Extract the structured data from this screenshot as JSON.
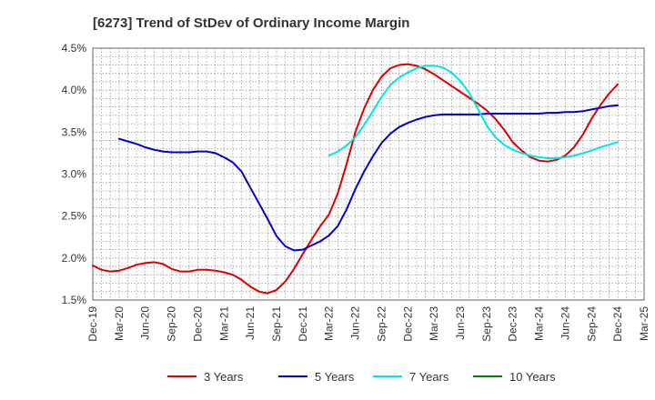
{
  "chart_data": {
    "type": "line",
    "title": "[6273]  Trend of StDev of Ordinary Income Margin",
    "xlabel": "",
    "ylabel": "",
    "ylim": [
      1.5,
      4.5
    ],
    "y_ticks": [
      1.5,
      2.0,
      2.5,
      3.0,
      3.5,
      4.0,
      4.5
    ],
    "y_tick_labels": [
      "1.5%",
      "2.0%",
      "2.5%",
      "3.0%",
      "3.5%",
      "4.0%",
      "4.5%"
    ],
    "x_ticks": [
      "Dec-19",
      "Mar-20",
      "Jun-20",
      "Sep-20",
      "Dec-20",
      "Mar-21",
      "Jun-21",
      "Sep-21",
      "Dec-21",
      "Mar-22",
      "Jun-22",
      "Sep-22",
      "Dec-22",
      "Mar-23",
      "Jun-23",
      "Sep-23",
      "Dec-23",
      "Mar-24",
      "Jun-24",
      "Sep-24",
      "Dec-24",
      "Mar-25"
    ],
    "grid": true,
    "legend_position": "bottom",
    "series": [
      {
        "name": "3 Years",
        "color": "#dd0000",
        "points": [
          [
            "Dec-19",
            1.91
          ],
          [
            "Jan-20",
            1.86
          ],
          [
            "Feb-20",
            1.84
          ],
          [
            "Mar-20",
            1.85
          ],
          [
            "Apr-20",
            1.88
          ],
          [
            "May-20",
            1.92
          ],
          [
            "Jun-20",
            1.94
          ],
          [
            "Jul-20",
            1.95
          ],
          [
            "Aug-20",
            1.93
          ],
          [
            "Sep-20",
            1.87
          ],
          [
            "Oct-20",
            1.84
          ],
          [
            "Nov-20",
            1.84
          ],
          [
            "Dec-20",
            1.86
          ],
          [
            "Jan-21",
            1.86
          ],
          [
            "Feb-21",
            1.85
          ],
          [
            "Mar-21",
            1.83
          ],
          [
            "Apr-21",
            1.8
          ],
          [
            "May-21",
            1.74
          ],
          [
            "Jun-21",
            1.66
          ],
          [
            "Jul-21",
            1.6
          ],
          [
            "Aug-21",
            1.58
          ],
          [
            "Sep-21",
            1.62
          ],
          [
            "Oct-21",
            1.72
          ],
          [
            "Nov-21",
            1.87
          ],
          [
            "Dec-21",
            2.05
          ],
          [
            "Jan-22",
            2.22
          ],
          [
            "Feb-22",
            2.38
          ],
          [
            "Mar-22",
            2.52
          ],
          [
            "Apr-22",
            2.77
          ],
          [
            "May-22",
            3.12
          ],
          [
            "Jun-22",
            3.5
          ],
          [
            "Jul-22",
            3.78
          ],
          [
            "Aug-22",
            4.0
          ],
          [
            "Sep-22",
            4.16
          ],
          [
            "Oct-22",
            4.26
          ],
          [
            "Nov-22",
            4.3
          ],
          [
            "Dec-22",
            4.31
          ],
          [
            "Jan-23",
            4.29
          ],
          [
            "Feb-23",
            4.25
          ],
          [
            "Mar-23",
            4.19
          ],
          [
            "Apr-23",
            4.12
          ],
          [
            "May-23",
            4.05
          ],
          [
            "Jun-23",
            3.98
          ],
          [
            "Jul-23",
            3.91
          ],
          [
            "Aug-23",
            3.84
          ],
          [
            "Sep-23",
            3.76
          ],
          [
            "Oct-23",
            3.66
          ],
          [
            "Nov-23",
            3.53
          ],
          [
            "Dec-23",
            3.38
          ],
          [
            "Jan-24",
            3.28
          ],
          [
            "Feb-24",
            3.2
          ],
          [
            "Mar-24",
            3.16
          ],
          [
            "Apr-24",
            3.15
          ],
          [
            "May-24",
            3.17
          ],
          [
            "Jun-24",
            3.22
          ],
          [
            "Jul-24",
            3.32
          ],
          [
            "Aug-24",
            3.47
          ],
          [
            "Sep-24",
            3.66
          ],
          [
            "Oct-24",
            3.82
          ],
          [
            "Nov-24",
            3.96
          ],
          [
            "Dec-24",
            4.07
          ]
        ]
      },
      {
        "name": "5 Years",
        "color": "#0000cc",
        "points": [
          [
            "Mar-20",
            3.42
          ],
          [
            "Apr-20",
            3.39
          ],
          [
            "May-20",
            3.36
          ],
          [
            "Jun-20",
            3.32
          ],
          [
            "Jul-20",
            3.29
          ],
          [
            "Aug-20",
            3.27
          ],
          [
            "Sep-20",
            3.26
          ],
          [
            "Oct-20",
            3.26
          ],
          [
            "Nov-20",
            3.26
          ],
          [
            "Dec-20",
            3.27
          ],
          [
            "Jan-21",
            3.27
          ],
          [
            "Feb-21",
            3.25
          ],
          [
            "Mar-21",
            3.2
          ],
          [
            "Apr-21",
            3.14
          ],
          [
            "May-21",
            3.03
          ],
          [
            "Jun-21",
            2.84
          ],
          [
            "Jul-21",
            2.65
          ],
          [
            "Aug-21",
            2.46
          ],
          [
            "Sep-21",
            2.26
          ],
          [
            "Oct-21",
            2.14
          ],
          [
            "Nov-21",
            2.09
          ],
          [
            "Dec-21",
            2.1
          ],
          [
            "Jan-22",
            2.15
          ],
          [
            "Feb-22",
            2.2
          ],
          [
            "Mar-22",
            2.27
          ],
          [
            "Apr-22",
            2.38
          ],
          [
            "May-22",
            2.58
          ],
          [
            "Jun-22",
            2.82
          ],
          [
            "Jul-22",
            3.03
          ],
          [
            "Aug-22",
            3.21
          ],
          [
            "Sep-22",
            3.37
          ],
          [
            "Oct-22",
            3.48
          ],
          [
            "Nov-22",
            3.56
          ],
          [
            "Dec-22",
            3.61
          ],
          [
            "Jan-23",
            3.65
          ],
          [
            "Feb-23",
            3.68
          ],
          [
            "Mar-23",
            3.7
          ],
          [
            "Apr-23",
            3.71
          ],
          [
            "May-23",
            3.71
          ],
          [
            "Jun-23",
            3.71
          ],
          [
            "Jul-23",
            3.71
          ],
          [
            "Aug-23",
            3.71
          ],
          [
            "Sep-23",
            3.72
          ],
          [
            "Oct-23",
            3.72
          ],
          [
            "Nov-23",
            3.72
          ],
          [
            "Dec-23",
            3.72
          ],
          [
            "Jan-24",
            3.72
          ],
          [
            "Feb-24",
            3.72
          ],
          [
            "Mar-24",
            3.72
          ],
          [
            "Apr-24",
            3.73
          ],
          [
            "May-24",
            3.73
          ],
          [
            "Jun-24",
            3.74
          ],
          [
            "Jul-24",
            3.74
          ],
          [
            "Aug-24",
            3.75
          ],
          [
            "Sep-24",
            3.77
          ],
          [
            "Oct-24",
            3.79
          ],
          [
            "Nov-24",
            3.81
          ],
          [
            "Dec-24",
            3.82
          ]
        ]
      },
      {
        "name": "7 Years",
        "color": "#00e5e5",
        "points": [
          [
            "Mar-22",
            3.22
          ],
          [
            "Apr-22",
            3.27
          ],
          [
            "May-22",
            3.34
          ],
          [
            "Jun-22",
            3.44
          ],
          [
            "Jul-22",
            3.58
          ],
          [
            "Aug-22",
            3.75
          ],
          [
            "Sep-22",
            3.92
          ],
          [
            "Oct-22",
            4.06
          ],
          [
            "Nov-22",
            4.15
          ],
          [
            "Dec-22",
            4.21
          ],
          [
            "Jan-23",
            4.26
          ],
          [
            "Feb-23",
            4.29
          ],
          [
            "Mar-23",
            4.29
          ],
          [
            "Apr-23",
            4.27
          ],
          [
            "May-23",
            4.21
          ],
          [
            "Jun-23",
            4.11
          ],
          [
            "Jul-23",
            3.97
          ],
          [
            "Aug-23",
            3.78
          ],
          [
            "Sep-23",
            3.58
          ],
          [
            "Oct-23",
            3.44
          ],
          [
            "Nov-23",
            3.35
          ],
          [
            "Dec-23",
            3.29
          ],
          [
            "Jan-24",
            3.25
          ],
          [
            "Feb-24",
            3.22
          ],
          [
            "Mar-24",
            3.2
          ],
          [
            "Apr-24",
            3.19
          ],
          [
            "May-24",
            3.19
          ],
          [
            "Jun-24",
            3.2
          ],
          [
            "Jul-24",
            3.22
          ],
          [
            "Aug-24",
            3.25
          ],
          [
            "Sep-24",
            3.28
          ],
          [
            "Oct-24",
            3.32
          ],
          [
            "Nov-24",
            3.35
          ],
          [
            "Dec-24",
            3.38
          ]
        ]
      },
      {
        "name": "10 Years",
        "color": "#008000",
        "points": []
      }
    ]
  }
}
